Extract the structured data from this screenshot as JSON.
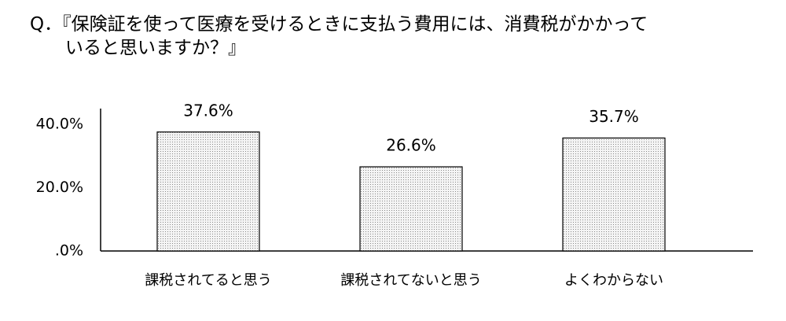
{
  "chart_data": {
    "type": "bar",
    "title": "Q．『保険証を使って医療を受けるときに支払う費用には、消費税がかかって\nいると思いますか？』",
    "categories": [
      "課税されてると思う",
      "課税されてないと思う",
      "よくわからない"
    ],
    "values": [
      37.6,
      26.6,
      35.7
    ],
    "value_labels": [
      "37.6%",
      "26.6%",
      "35.7%"
    ],
    "color": "#e6e6e6",
    "ylim": [
      0,
      45
    ],
    "yticks": [
      {
        "value": 0,
        "label": ".0%"
      },
      {
        "value": 20,
        "label": "20.0%"
      },
      {
        "value": 40,
        "label": "40.0%"
      }
    ],
    "grid": false
  }
}
